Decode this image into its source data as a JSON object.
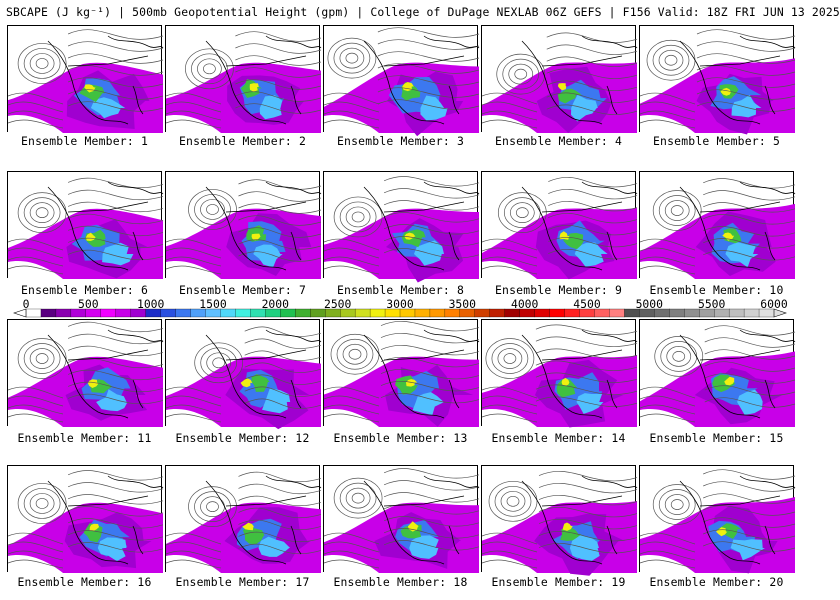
{
  "header": {
    "title": "SBCAPE (J kg⁻¹) | 500mb Geopotential Height (gpm) | College of DuPage NEXLAB 06Z GEFS | F156 Valid: 18Z FRI JUN 13 2025"
  },
  "colorbar": {
    "min": 0,
    "max": 6000,
    "step": 100,
    "labels": [
      "0",
      "500",
      "1000",
      "1500",
      "2000",
      "2500",
      "3000",
      "3500",
      "4000",
      "4500",
      "5000",
      "5500",
      "6000"
    ],
    "colors": {
      "low": [
        "#ffffff",
        "#5a0080",
        "#8a00b0",
        "#b000d8",
        "#d400f0",
        "#f000ff",
        "#c800e8",
        "#a000d0"
      ],
      "blue": [
        "#1c2cc8",
        "#2a50e0",
        "#3c78f0",
        "#50a0f8",
        "#60c0ff",
        "#50d8f8",
        "#40f0e0",
        "#30e0b0"
      ],
      "green": [
        "#20d080",
        "#20c050",
        "#40b030",
        "#60a020",
        "#80b020",
        "#a8c820",
        "#d0e020",
        "#f0f010"
      ],
      "yellow": [
        "#ffe000",
        "#ffc800",
        "#ffb000",
        "#ff9800",
        "#ff8000",
        "#e86000",
        "#d04000",
        "#c02000"
      ],
      "red": [
        "#a00000",
        "#c00000",
        "#e00000",
        "#ff0000",
        "#ff2020",
        "#ff4040",
        "#ff6060",
        "#ff8080"
      ],
      "gray": [
        "#505050",
        "#606060",
        "#707070",
        "#808080",
        "#909090",
        "#a0a0a0",
        "#b0b0b0",
        "#c0c0c0",
        "#d0d0d0",
        "#e0e0e0"
      ]
    }
  },
  "members": [
    {
      "label": "Ensemble Member: 1",
      "low": [
        0.22,
        0.35
      ],
      "ridge": 0.0
    },
    {
      "label": "Ensemble Member: 2",
      "low": [
        0.28,
        0.4
      ],
      "ridge": 0.05
    },
    {
      "label": "Ensemble Member: 3",
      "low": [
        0.18,
        0.3
      ],
      "ridge": -0.05
    },
    {
      "label": "Ensemble Member: 4",
      "low": [
        0.25,
        0.45
      ],
      "ridge": 0.08
    },
    {
      "label": "Ensemble Member: 5",
      "low": [
        0.2,
        0.32
      ],
      "ridge": 0.0
    },
    {
      "label": "Ensemble Member: 6",
      "low": [
        0.22,
        0.38
      ],
      "ridge": 0.06
    },
    {
      "label": "Ensemble Member: 7",
      "low": [
        0.3,
        0.35
      ],
      "ridge": 0.1
    },
    {
      "label": "Ensemble Member: 8",
      "low": [
        0.22,
        0.42
      ],
      "ridge": 0.02
    },
    {
      "label": "Ensemble Member: 9",
      "low": [
        0.26,
        0.38
      ],
      "ridge": 0.04
    },
    {
      "label": "Ensemble Member: 10",
      "low": [
        0.24,
        0.36
      ],
      "ridge": 0.07
    },
    {
      "label": "Ensemble Member: 11",
      "low": [
        0.22,
        0.36
      ],
      "ridge": -0.04
    },
    {
      "label": "Ensemble Member: 12",
      "low": [
        0.34,
        0.4
      ],
      "ridge": 0.08
    },
    {
      "label": "Ensemble Member: 13",
      "low": [
        0.2,
        0.32
      ],
      "ridge": -0.06
    },
    {
      "label": "Ensemble Member: 14",
      "low": [
        0.18,
        0.36
      ],
      "ridge": 0.03
    },
    {
      "label": "Ensemble Member: 15",
      "low": [
        0.25,
        0.34
      ],
      "ridge": 0.05
    },
    {
      "label": "Ensemble Member: 16",
      "low": [
        0.22,
        0.35
      ],
      "ridge": 0.02
    },
    {
      "label": "Ensemble Member: 17",
      "low": [
        0.3,
        0.38
      ],
      "ridge": 0.06
    },
    {
      "label": "Ensemble Member: 18",
      "low": [
        0.22,
        0.3
      ],
      "ridge": -0.03
    },
    {
      "label": "Ensemble Member: 19",
      "low": [
        0.2,
        0.33
      ],
      "ridge": 0.04
    },
    {
      "label": "Ensemble Member: 20",
      "low": [
        0.24,
        0.36
      ],
      "ridge": 0.0
    }
  ]
}
